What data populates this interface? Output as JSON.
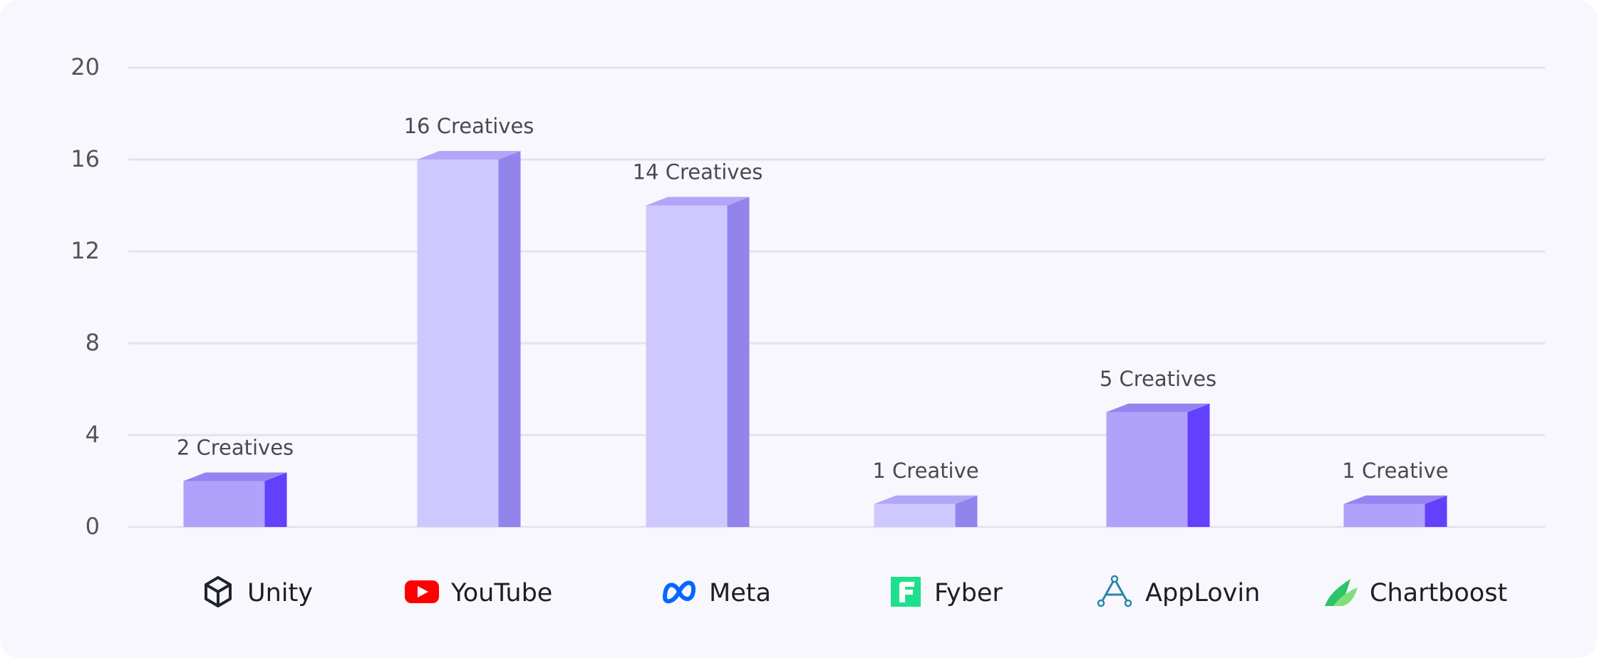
{
  "chart_data": {
    "type": "bar",
    "categories": [
      "Unity",
      "YouTube",
      "Meta",
      "Fyber",
      "AppLovin",
      "Chartboost"
    ],
    "values": [
      2,
      16,
      14,
      1,
      5,
      1
    ],
    "data_labels": [
      "2 Creatives",
      "16 Creatives",
      "14 Creatives",
      "1 Creative",
      "5 Creatives",
      "1 Creative"
    ],
    "category_icons": [
      "unity-icon",
      "youtube-icon",
      "meta-icon",
      "fyber-icon",
      "applovin-icon",
      "chartboost-icon"
    ],
    "yticks": [
      "0",
      "4",
      "8",
      "12",
      "16",
      "20"
    ],
    "ytick_values": [
      0,
      4,
      8,
      12,
      16,
      20
    ],
    "ylim": [
      0,
      20
    ],
    "title": "",
    "xlabel": "",
    "ylabel": "",
    "grid": true,
    "bar_colors": {
      "light": {
        "front": "#cfc8fe",
        "top": "#b2a6f8",
        "side": "#9384ec"
      },
      "dark": {
        "front": "#b0a2fa",
        "top": "#9483f0",
        "side": "#6340fd"
      }
    },
    "bar_styles": [
      "dark",
      "light",
      "light",
      "light",
      "dark",
      "dark"
    ]
  }
}
